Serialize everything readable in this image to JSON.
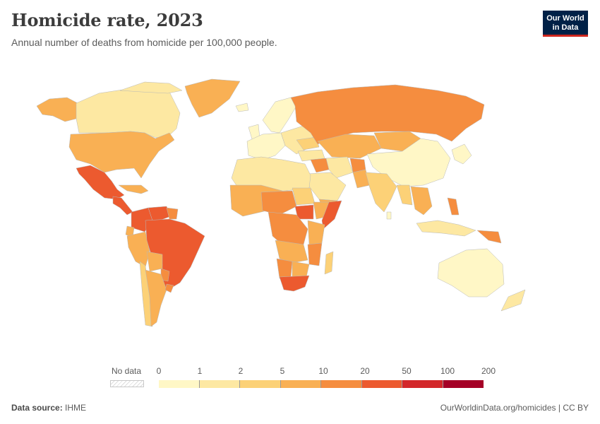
{
  "header": {
    "title": "Homicide rate, 2023",
    "subtitle": "Annual number of deaths from homicide per 100,000 people."
  },
  "logo": {
    "line1": "Our World",
    "line2": "in Data",
    "bg_color": "#002147",
    "accent_color": "#ce261e"
  },
  "legend": {
    "no_data_label": "No data",
    "ticks": [
      "0",
      "1",
      "2",
      "5",
      "10",
      "20",
      "50",
      "100",
      "200"
    ],
    "bin_colors": [
      "#fff7c6",
      "#fde8a2",
      "#fcd177",
      "#f9b054",
      "#f58d3f",
      "#ec5a2f",
      "#d3272a",
      "#a50026"
    ]
  },
  "footer": {
    "source_label": "Data source:",
    "source_value": "IHME",
    "url_text": "OurWorldinData.org/homicides | CC BY"
  },
  "chart_data": {
    "type": "choropleth",
    "title": "Homicide rate, 2023",
    "subtitle": "Annual number of deaths from homicide per 100,000 people.",
    "scale": [
      0,
      1,
      2,
      5,
      10,
      20,
      50,
      100,
      200
    ],
    "regions": [
      {
        "name": "Canada",
        "bin": "1-2"
      },
      {
        "name": "Alaska",
        "bin": "5-10"
      },
      {
        "name": "Greenland",
        "bin": "5-10"
      },
      {
        "name": "United States",
        "bin": "5-10"
      },
      {
        "name": "Mexico",
        "bin": "20-50"
      },
      {
        "name": "Central America",
        "bin": "20-50"
      },
      {
        "name": "Caribbean",
        "bin": "5-10"
      },
      {
        "name": "Venezuela",
        "bin": "20-50"
      },
      {
        "name": "Colombia",
        "bin": "20-50"
      },
      {
        "name": "Brazil",
        "bin": "20-50"
      },
      {
        "name": "Peru",
        "bin": "5-10"
      },
      {
        "name": "Bolivia",
        "bin": "5-10"
      },
      {
        "name": "Paraguay",
        "bin": "10-20"
      },
      {
        "name": "Argentina",
        "bin": "5-10"
      },
      {
        "name": "Chile",
        "bin": "2-5"
      },
      {
        "name": "Uruguay",
        "bin": "10-20"
      },
      {
        "name": "Western Europe",
        "bin": "0-1"
      },
      {
        "name": "Eastern Europe",
        "bin": "1-5"
      },
      {
        "name": "Russia",
        "bin": "10-20"
      },
      {
        "name": "Central Asia",
        "bin": "5-10"
      },
      {
        "name": "China",
        "bin": "0-1"
      },
      {
        "name": "Mongolia",
        "bin": "5-10"
      },
      {
        "name": "Japan & Korea",
        "bin": "0-1"
      },
      {
        "name": "Middle East",
        "bin": "1-5"
      },
      {
        "name": "Iraq",
        "bin": "10-20"
      },
      {
        "name": "India",
        "bin": "2-5"
      },
      {
        "name": "Southeast Asia",
        "bin": "2-10"
      },
      {
        "name": "Philippines",
        "bin": "10-20"
      },
      {
        "name": "Indonesia",
        "bin": "1-2"
      },
      {
        "name": "Papua New Guinea",
        "bin": "10-20"
      },
      {
        "name": "Australia",
        "bin": "0-1"
      },
      {
        "name": "New Zealand",
        "bin": "1-2"
      },
      {
        "name": "North Africa",
        "bin": "1-2"
      },
      {
        "name": "West Africa",
        "bin": "5-20"
      },
      {
        "name": "Central Africa",
        "bin": "10-20"
      },
      {
        "name": "South Sudan",
        "bin": "20-50"
      },
      {
        "name": "Somalia",
        "bin": "20-50"
      },
      {
        "name": "East Africa",
        "bin": "5-20"
      },
      {
        "name": "Southern Africa",
        "bin": "5-10"
      },
      {
        "name": "South Africa",
        "bin": "20-50"
      },
      {
        "name": "Madagascar",
        "bin": "2-5"
      }
    ]
  }
}
